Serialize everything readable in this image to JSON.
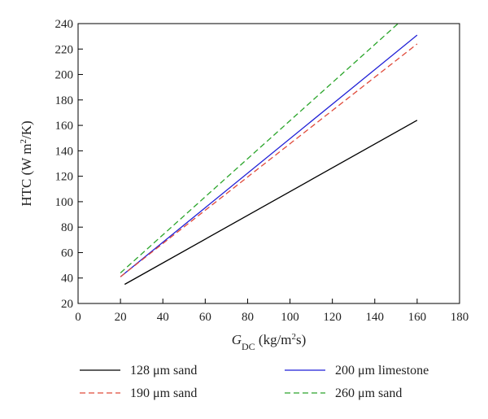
{
  "chart_data": {
    "type": "line",
    "x_axis": {
      "label_symbol": "G",
      "label_subscript": "DC",
      "label_units_pre": " (kg/m",
      "label_units_sup": "2",
      "label_units_post": "s)",
      "xlim": [
        0,
        180
      ],
      "ticks": [
        0,
        20,
        40,
        60,
        80,
        100,
        120,
        140,
        160,
        180
      ]
    },
    "y_axis": {
      "label_pre": "HTC (W m",
      "label_sup": "2",
      "label_post": "/K)",
      "ylim": [
        20,
        240
      ],
      "ticks": [
        20,
        40,
        60,
        80,
        100,
        120,
        140,
        160,
        180,
        200,
        220,
        240
      ]
    },
    "grid": false,
    "legend_position": "bottom",
    "series": [
      {
        "name": "128 μm sand",
        "color": "#000000",
        "dash": "solid",
        "x": [
          22,
          160
        ],
        "y": [
          35,
          164
        ]
      },
      {
        "name": "200 μm limestone",
        "color": "#1f1fd6",
        "dash": "solid",
        "x": [
          20,
          160
        ],
        "y": [
          41,
          231
        ]
      },
      {
        "name": "190 μm sand",
        "color": "#e04a3a",
        "dash": "dashed",
        "x": [
          20,
          160
        ],
        "y": [
          41,
          224
        ]
      },
      {
        "name": "260 μm sand",
        "color": "#2aa52a",
        "dash": "dashed",
        "x": [
          20,
          151
        ],
        "y": [
          44,
          240
        ]
      }
    ]
  }
}
